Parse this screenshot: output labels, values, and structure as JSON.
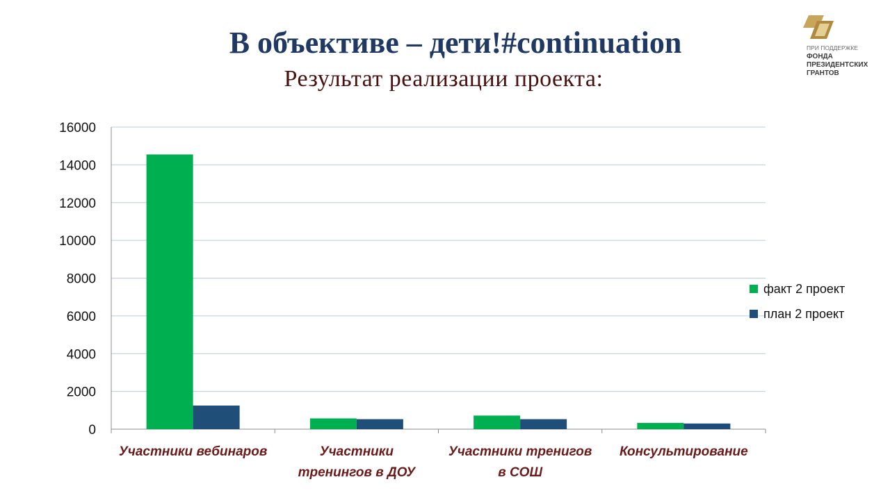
{
  "header": {
    "title": "В объективе – дети!#continuation",
    "subtitle": "Результат реализации проекта:"
  },
  "logo": {
    "line1": "ПРИ ПОДДЕРЖКЕ",
    "line2": "ФОНДА",
    "line3": "ПРЕЗИДЕНТСКИХ",
    "line4": "ГРАНТОВ"
  },
  "legend": {
    "item1": "факт 2 проект",
    "item2": "план 2 проект"
  },
  "chart_data": {
    "type": "bar",
    "categories": [
      [
        "Участники вебинаров"
      ],
      [
        "Участники",
        "тренингов в ДОУ"
      ],
      [
        "Участники тренигов",
        "в СОШ"
      ],
      [
        "Консультирование"
      ]
    ],
    "series": [
      {
        "name": "факт 2 проект",
        "color": "#00b050",
        "values": [
          14550,
          570,
          720,
          330
        ]
      },
      {
        "name": "план 2 проект",
        "color": "#1f4e79",
        "values": [
          1250,
          530,
          530,
          300
        ]
      }
    ],
    "ylim": [
      0,
      16000
    ],
    "yticks": [
      0,
      2000,
      4000,
      6000,
      8000,
      10000,
      12000,
      14000,
      16000
    ],
    "grid": true,
    "legend_position": "right",
    "category_label_color": "#6b1a1a",
    "gridline_color": "#b8cce4"
  }
}
